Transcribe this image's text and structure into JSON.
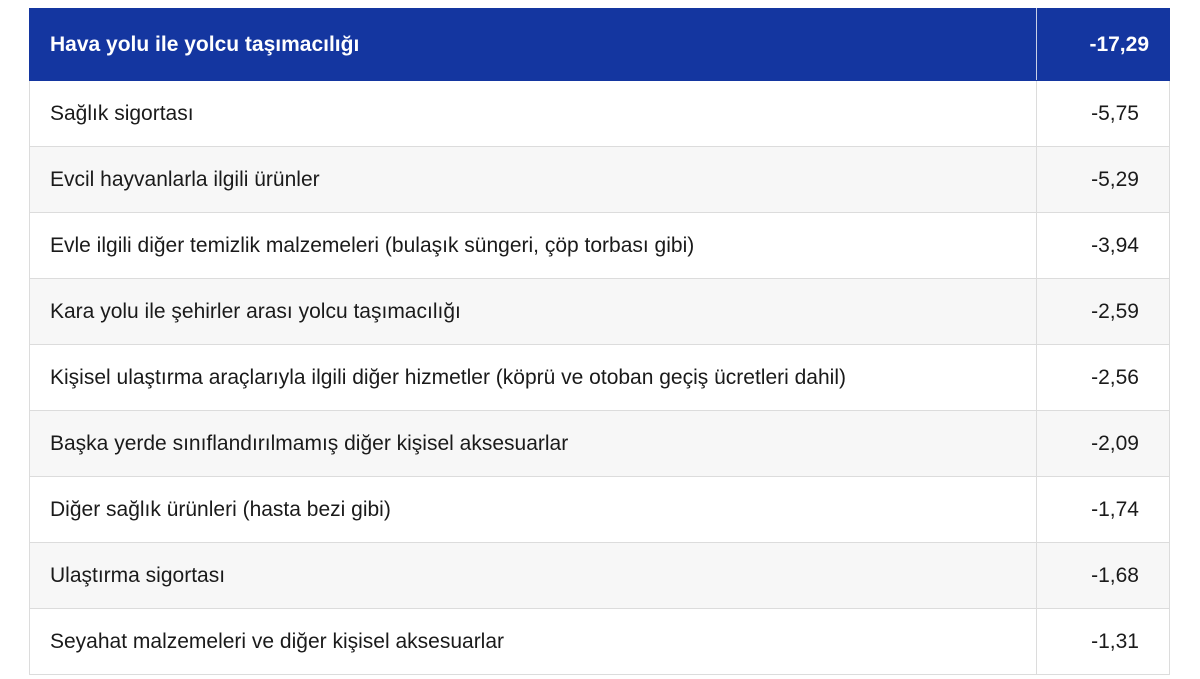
{
  "table": {
    "header": {
      "label": "Hava yolu ile yolcu taşımacılığı",
      "value": "-17,29"
    },
    "header_color": "#1436a0",
    "rows": [
      {
        "label": "Sağlık sigortası",
        "value": "-5,75"
      },
      {
        "label": "Evcil hayvanlarla ilgili ürünler",
        "value": "-5,29"
      },
      {
        "label": "Evle ilgili diğer temizlik malzemeleri (bulaşık süngeri, çöp torbası gibi)",
        "value": "-3,94"
      },
      {
        "label": "Kara yolu ile şehirler arası yolcu taşımacılığı",
        "value": "-2,59"
      },
      {
        "label": "Kişisel ulaştırma araçlarıyla ilgili diğer hizmetler (köprü ve otoban geçiş ücretleri dahil)",
        "value": "-2,56"
      },
      {
        "label": "Başka yerde sınıflandırılmamış diğer kişisel aksesuarlar",
        "value": "-2,09"
      },
      {
        "label": "Diğer sağlık ürünleri (hasta bezi gibi)",
        "value": "-1,74"
      },
      {
        "label": "Ulaştırma sigortası",
        "value": "-1,68"
      },
      {
        "label": "Seyahat malzemeleri ve diğer kişisel aksesuarlar",
        "value": "-1,31"
      }
    ]
  }
}
